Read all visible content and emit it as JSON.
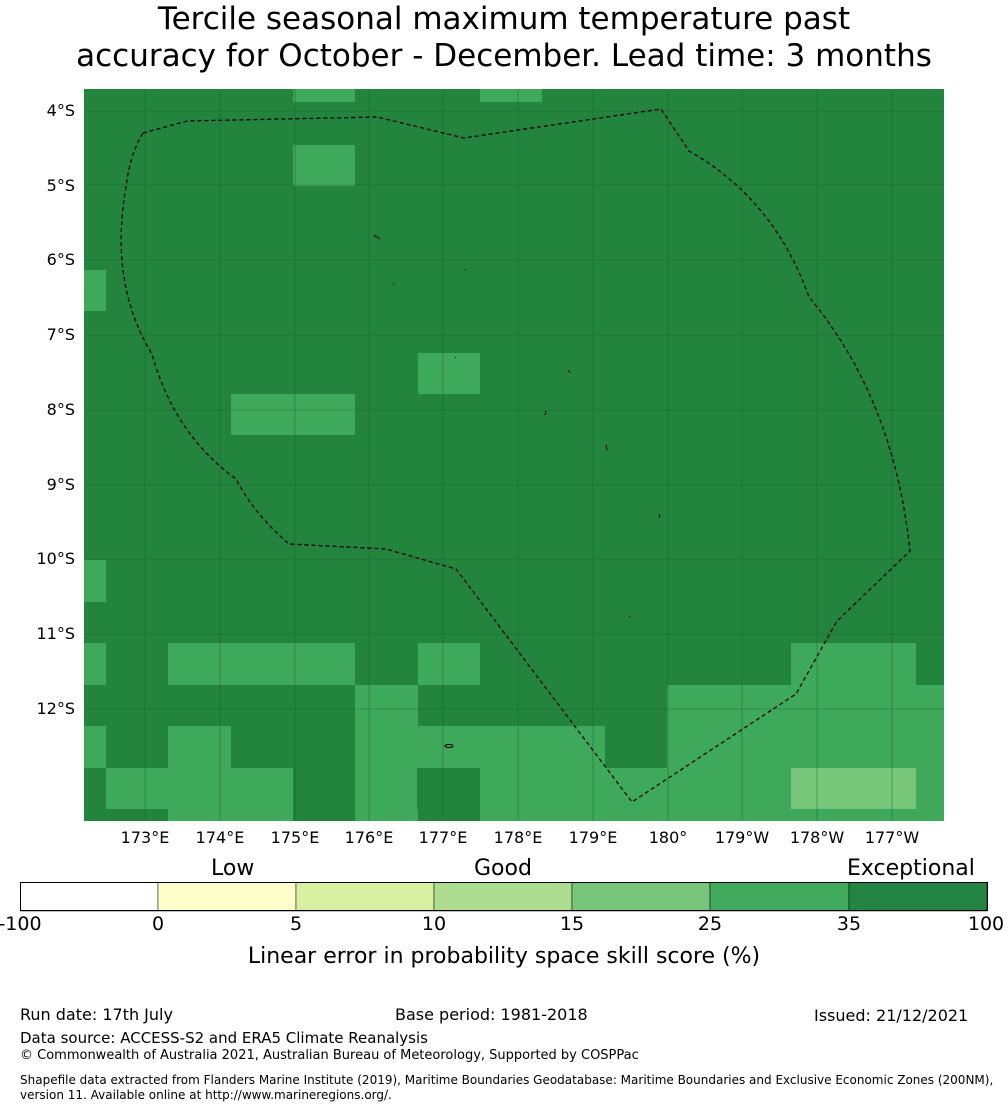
{
  "title": {
    "line1": "Tercile seasonal maximum temperature past",
    "line2": "accuracy for October - December. Lead time: 3 months"
  },
  "map": {
    "lat_labels": [
      "4°S",
      "5°S",
      "6°S",
      "7°S",
      "8°S",
      "9°S",
      "10°S",
      "11°S",
      "12°S"
    ],
    "lon_labels": [
      "173°E",
      "174°E",
      "175°E",
      "176°E",
      "177°E",
      "178°E",
      "179°E",
      "180°",
      "179°W",
      "178°W",
      "177°W"
    ],
    "colors": {
      "exceptional": "#23843d",
      "band_25_35": "#3ea95a",
      "band_15_25": "#78c679",
      "gridline": "#1c5a2e",
      "boundary": "#000000"
    },
    "boundary_style": "dashed EEZ boundary"
  },
  "colorbar": {
    "category_labels": [
      "Low",
      "Good",
      "Exceptional"
    ],
    "ticks": [
      "-100",
      "0",
      "5",
      "10",
      "15",
      "25",
      "35",
      "100"
    ],
    "colors": [
      "#ffffff",
      "#ffffcc",
      "#d9f0a3",
      "#addd8e",
      "#78c679",
      "#41ab5d",
      "#238443"
    ],
    "label": "Linear error in probability space skill score (%)"
  },
  "footer": {
    "run_date": "Run date: 17th July",
    "base_period": "Base period: 1981-2018",
    "issued": "Issued: 21/12/2021",
    "data_source": "Data source: ACCESS-S2 and ERA5 Climate Reanalysis",
    "copyright": "© Commonwealth of Australia 2021, Australian Bureau of Meteorology, Supported by COSPPac",
    "shapefile_line1": "Shapefile data extracted from Flanders Marine Institute (2019), Maritime Boundaries Geodatabase: Maritime Boundaries and Exclusive Economic Zones (200NM),",
    "shapefile_line2": "version 11. Available online at http://www.marineregions.org/."
  }
}
